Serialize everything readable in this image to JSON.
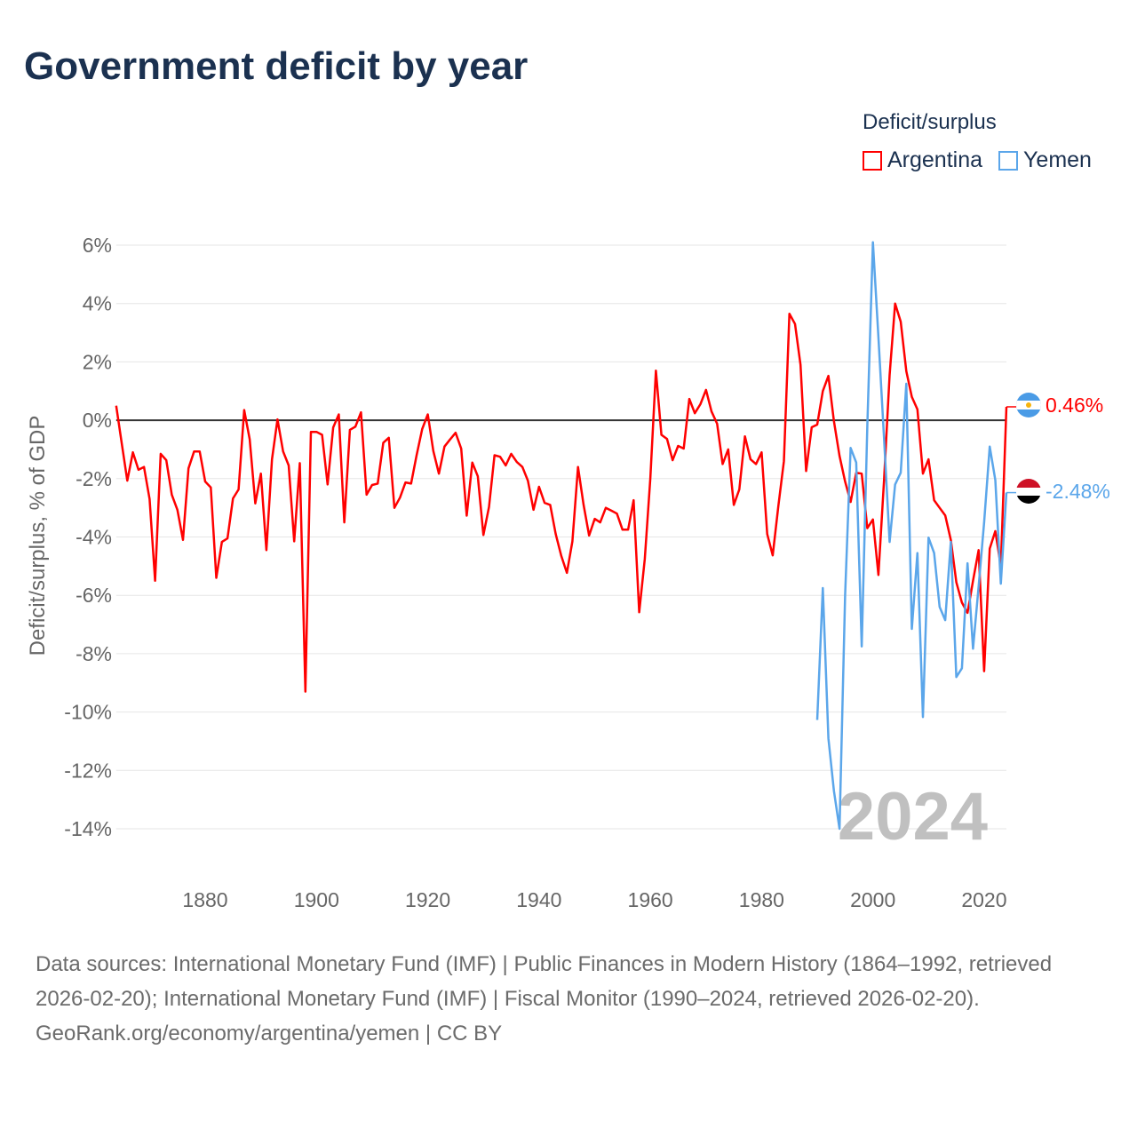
{
  "title": "Government deficit by year",
  "legend": {
    "title": "Deficit/surplus",
    "items": [
      {
        "name": "Argentina",
        "color": "#ff0000"
      },
      {
        "name": "Yemen",
        "color": "#5ba6ea"
      }
    ]
  },
  "footer": {
    "sources": "Data sources: International Monetary Fund (IMF) | Public Finances in Modern History (1864–1992, retrieved 2026-02-20); International Monetary Fund (IMF) | Fiscal Monitor (1990–2024, retrieved 2026-02-20).",
    "credit": "GeoRank.org/economy/argentina/yemen | CC BY"
  },
  "chart_data": {
    "type": "line",
    "title": "Government deficit by year",
    "xlabel": "",
    "ylabel": "Deficit/surplus, % of GDP",
    "xlim": [
      1864,
      2024
    ],
    "ylim": [
      -14,
      6
    ],
    "xticks": [
      1880,
      1900,
      1920,
      1940,
      1960,
      1980,
      2000,
      2020
    ],
    "yticks": [
      6,
      4,
      2,
      0,
      -2,
      -4,
      -6,
      -8,
      -10,
      -12,
      -14
    ],
    "ytick_labels": [
      "6%",
      "4%",
      "2%",
      "0%",
      "-2%",
      "-4%",
      "-6%",
      "-8%",
      "-10%",
      "-12%",
      "-14%"
    ],
    "watermark_year": "2024",
    "series": [
      {
        "name": "Argentina",
        "color": "#ff0000",
        "start_year": 1864,
        "end_label": "0.46%",
        "values": [
          0.5,
          -0.8,
          -2.07,
          -1.1,
          -1.7,
          -1.6,
          -2.7,
          -5.5,
          -1.15,
          -1.37,
          -2.55,
          -3.07,
          -4.1,
          -1.65,
          -1.07,
          -1.07,
          -2.1,
          -2.3,
          -5.4,
          -4.17,
          -4.05,
          -2.68,
          -2.37,
          0.35,
          -0.65,
          -2.85,
          -1.83,
          -4.45,
          -1.34,
          0.03,
          -1.07,
          -1.55,
          -4.15,
          -1.47,
          -9.3,
          -0.4,
          -0.4,
          -0.5,
          -2.2,
          -0.25,
          0.2,
          -3.5,
          -0.33,
          -0.22,
          0.27,
          -2.55,
          -2.22,
          -2.17,
          -0.77,
          -0.6,
          -3.0,
          -2.65,
          -2.13,
          -2.17,
          -1.2,
          -0.3,
          0.2,
          -1.05,
          -1.83,
          -0.9,
          -0.66,
          -0.43,
          -0.97,
          -3.27,
          -1.45,
          -1.92,
          -3.93,
          -2.97,
          -1.2,
          -1.25,
          -1.55,
          -1.15,
          -1.43,
          -1.6,
          -2.07,
          -3.07,
          -2.28,
          -2.83,
          -2.9,
          -3.9,
          -4.65,
          -5.23,
          -4.15,
          -1.6,
          -2.9,
          -3.95,
          -3.38,
          -3.5,
          -3.0,
          -3.1,
          -3.2,
          -3.75,
          -3.75,
          -2.74,
          -6.58,
          -4.75,
          -2.0,
          1.7,
          -0.5,
          -0.64,
          -1.37,
          -0.88,
          -0.97,
          0.73,
          0.24,
          0.55,
          1.04,
          0.3,
          -0.12,
          -1.5,
          -1.0,
          -2.9,
          -2.37,
          -0.55,
          -1.34,
          -1.5,
          -1.1,
          -3.9,
          -4.63,
          -2.95,
          -1.4,
          3.65,
          3.3,
          1.9,
          -1.74,
          -0.24,
          -0.15,
          1.0,
          1.52,
          -0.03,
          -1.22,
          -2.1,
          -2.8,
          -1.8,
          -1.83,
          -3.7,
          -3.4,
          -5.3,
          -2.07,
          1.55,
          4.0,
          3.38,
          1.68,
          0.8,
          0.37,
          -1.83,
          -1.34,
          -2.74,
          -3.0,
          -3.26,
          -4.1,
          -5.55,
          -6.25,
          -6.6,
          -5.5,
          -4.45,
          -8.6,
          -4.4,
          -3.8,
          -5.0,
          0.46
        ]
      },
      {
        "name": "Yemen",
        "color": "#5ba6ea",
        "start_year": 1990,
        "end_label": "-2.48%",
        "values": [
          -10.27,
          -5.75,
          -10.9,
          -12.7,
          -14.0,
          -6.0,
          -0.95,
          -1.45,
          -7.75,
          -0.2,
          6.1,
          2.85,
          -0.6,
          -4.17,
          -2.2,
          -1.8,
          1.25,
          -7.15,
          -4.55,
          -10.17,
          -4.02,
          -4.55,
          -6.4,
          -6.85,
          -4.17,
          -8.8,
          -8.5,
          -4.9,
          -7.83,
          -5.7,
          -3.5,
          -0.9,
          -2.05,
          -5.6,
          -2.48
        ]
      }
    ]
  }
}
